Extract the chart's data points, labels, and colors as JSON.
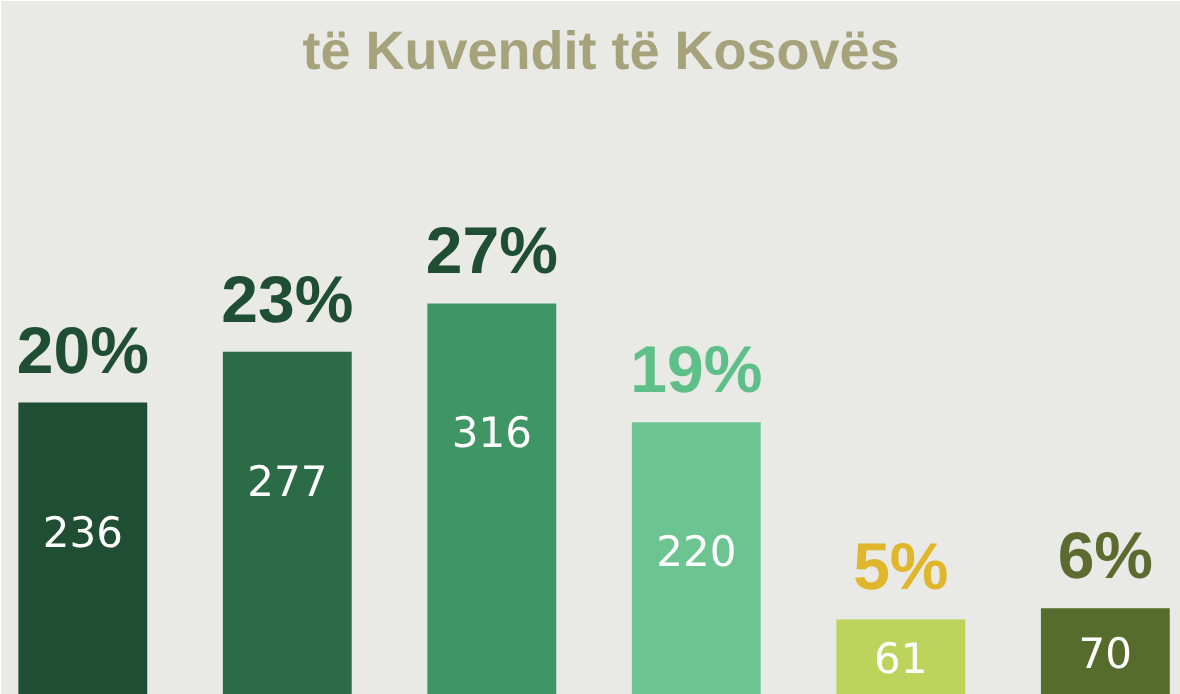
{
  "chart_data": {
    "type": "bar",
    "title": "të Kuvendit të Kosovës",
    "categories": [
      null,
      null,
      null,
      null,
      null,
      null
    ],
    "values": [
      236,
      277,
      316,
      220,
      61,
      70
    ],
    "colors": [
      "#1f4e34",
      "#2b6c46",
      "#3f9563",
      "#6cc590",
      "#bcd35c",
      "#566c2c"
    ],
    "ylim": [
      0,
      560
    ],
    "data_labels": true,
    "annotations": [
      "20%",
      "23%",
      "27%",
      "19%",
      "5%",
      "6%"
    ]
  }
}
